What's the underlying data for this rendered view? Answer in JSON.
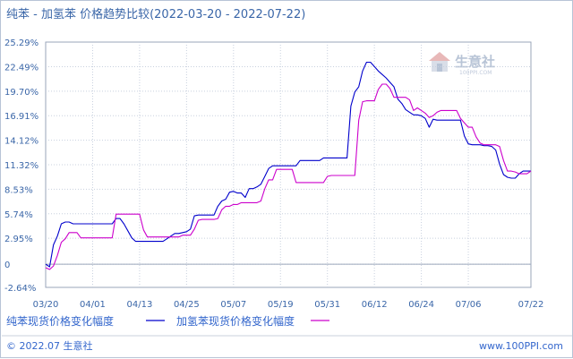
{
  "chart_data": {
    "type": "line",
    "title": "纯苯 - 加氢苯 价格趋势比较(2022-03-20 - 2022-07-22)",
    "xlabel": "",
    "ylabel": "",
    "ylim": [
      -2.64,
      25.29
    ],
    "y_ticks": [
      "25.29%",
      "22.49%",
      "19.70%",
      "16.91%",
      "14.12%",
      "11.32%",
      "8.53%",
      "5.74%",
      "2.95%",
      "0",
      "-2.64%"
    ],
    "y_tick_values": [
      25.29,
      22.49,
      19.7,
      16.91,
      14.12,
      11.32,
      8.53,
      5.74,
      2.95,
      0,
      -2.64
    ],
    "x_ticks": [
      "03/20",
      "04/01",
      "04/13",
      "04/25",
      "05/07",
      "05/19",
      "05/31",
      "06/12",
      "06/24",
      "07/06",
      "07/22"
    ],
    "x_tick_values": [
      0,
      12,
      24,
      36,
      48,
      60,
      72,
      84,
      96,
      108,
      124
    ],
    "x_range": [
      0,
      124
    ],
    "grid": true,
    "legend_position": "bottom-left",
    "series": [
      {
        "name": "纯苯现货价格变化幅度",
        "color": "#0000cc",
        "x": [
          0,
          1,
          2,
          3,
          4,
          5,
          6,
          7,
          8,
          9,
          10,
          11,
          12,
          13,
          14,
          15,
          16,
          17,
          18,
          19,
          20,
          21,
          22,
          23,
          24,
          25,
          26,
          27,
          28,
          29,
          30,
          31,
          32,
          33,
          34,
          35,
          36,
          37,
          38,
          39,
          40,
          41,
          42,
          43,
          44,
          45,
          46,
          47,
          48,
          49,
          50,
          51,
          52,
          53,
          54,
          55,
          56,
          57,
          58,
          59,
          60,
          61,
          62,
          63,
          64,
          65,
          66,
          67,
          68,
          69,
          70,
          71,
          72,
          73,
          74,
          75,
          76,
          77,
          78,
          79,
          80,
          81,
          82,
          83,
          84,
          85,
          86,
          87,
          88,
          89,
          90,
          91,
          92,
          93,
          94,
          95,
          96,
          97,
          98,
          99,
          100,
          101,
          102,
          103,
          104,
          105,
          106,
          107,
          108,
          109,
          110,
          111,
          112,
          113,
          114,
          115,
          116,
          117,
          118,
          119,
          120,
          121,
          122,
          123,
          124
        ],
        "values": [
          0,
          -0.3,
          2.2,
          3.2,
          4.6,
          4.8,
          4.8,
          4.6,
          4.6,
          4.6,
          4.6,
          4.6,
          4.6,
          4.6,
          4.6,
          4.6,
          4.6,
          4.6,
          5.2,
          5.2,
          4.6,
          3.8,
          3.0,
          2.6,
          2.6,
          2.6,
          2.6,
          2.6,
          2.6,
          2.6,
          2.6,
          2.9,
          3.2,
          3.5,
          3.5,
          3.6,
          3.7,
          4.0,
          5.5,
          5.6,
          5.6,
          5.6,
          5.6,
          5.6,
          6.6,
          7.2,
          7.4,
          8.2,
          8.3,
          8.1,
          8.1,
          7.6,
          8.6,
          8.6,
          8.8,
          9.1,
          10.0,
          10.9,
          11.2,
          11.2,
          11.2,
          11.2,
          11.2,
          11.2,
          11.2,
          11.8,
          11.8,
          11.8,
          11.8,
          11.8,
          11.8,
          12.1,
          12.1,
          12.1,
          12.1,
          12.1,
          12.1,
          12.1,
          18.0,
          19.6,
          20.2,
          22.0,
          23.0,
          23.0,
          22.5,
          22.0,
          21.6,
          21.2,
          20.7,
          20.2,
          18.8,
          18.3,
          17.6,
          17.3,
          17.0,
          17.0,
          16.9,
          16.6,
          15.6,
          16.5,
          16.4,
          16.4,
          16.4,
          16.4,
          16.4,
          16.4,
          16.4,
          14.6,
          13.7,
          13.6,
          13.6,
          13.6,
          13.5,
          13.5,
          13.4,
          13.0,
          11.4,
          10.2,
          9.9,
          9.8,
          9.8,
          10.3,
          10.6,
          10.6,
          10.6
        ]
      },
      {
        "name": "加氢苯现货价格变化幅度",
        "color": "#cc00cc",
        "x": [
          0,
          1,
          2,
          3,
          4,
          5,
          6,
          7,
          8,
          9,
          10,
          11,
          12,
          13,
          14,
          15,
          16,
          17,
          18,
          19,
          20,
          21,
          22,
          23,
          24,
          25,
          26,
          27,
          28,
          29,
          30,
          31,
          32,
          33,
          34,
          35,
          36,
          37,
          38,
          39,
          40,
          41,
          42,
          43,
          44,
          45,
          46,
          47,
          48,
          49,
          50,
          51,
          52,
          53,
          54,
          55,
          56,
          57,
          58,
          59,
          60,
          61,
          62,
          63,
          64,
          65,
          66,
          67,
          68,
          69,
          70,
          71,
          72,
          73,
          74,
          75,
          76,
          77,
          78,
          79,
          80,
          81,
          82,
          83,
          84,
          85,
          86,
          87,
          88,
          89,
          90,
          91,
          92,
          93,
          94,
          95,
          96,
          97,
          98,
          99,
          100,
          101,
          102,
          103,
          104,
          105,
          106,
          107,
          108,
          109,
          110,
          111,
          112,
          113,
          114,
          115,
          116,
          117,
          118,
          119,
          120,
          121,
          122,
          123,
          124
        ],
        "values": [
          -0.4,
          -0.6,
          -0.2,
          1.0,
          2.5,
          2.9,
          3.6,
          3.6,
          3.6,
          3.0,
          3.0,
          3.0,
          3.0,
          3.0,
          3.0,
          3.0,
          3.0,
          3.0,
          5.7,
          5.7,
          5.7,
          5.7,
          5.7,
          5.7,
          5.7,
          3.9,
          3.1,
          3.1,
          3.1,
          3.1,
          3.1,
          3.1,
          3.1,
          3.1,
          3.1,
          3.3,
          3.3,
          3.3,
          4.0,
          5.0,
          5.1,
          5.1,
          5.1,
          5.1,
          5.2,
          6.2,
          6.6,
          6.6,
          6.8,
          6.8,
          7.0,
          7.0,
          7.0,
          7.0,
          7.0,
          7.2,
          8.6,
          9.6,
          9.6,
          10.8,
          10.8,
          10.8,
          10.8,
          10.8,
          9.3,
          9.3,
          9.3,
          9.3,
          9.3,
          9.3,
          9.3,
          9.3,
          10.0,
          10.1,
          10.1,
          10.1,
          10.1,
          10.1,
          10.1,
          10.1,
          16.4,
          18.5,
          18.6,
          18.6,
          18.6,
          19.9,
          20.5,
          20.5,
          20.0,
          19.0,
          19.0,
          19.0,
          19.0,
          18.7,
          17.5,
          17.8,
          17.5,
          17.2,
          16.7,
          16.9,
          17.3,
          17.5,
          17.5,
          17.5,
          17.5,
          17.5,
          16.6,
          16.1,
          15.6,
          15.6,
          14.5,
          13.8,
          13.6,
          13.6,
          13.6,
          13.6,
          13.4,
          11.8,
          10.6,
          10.6,
          10.5,
          10.3,
          10.3,
          10.3,
          10.6
        ]
      }
    ]
  },
  "watermark": {
    "text": "生意社",
    "sub": "100PPI.COM"
  },
  "footer": {
    "copyright": "© 2022.07 生意社",
    "site": "www.100PPI.com"
  }
}
